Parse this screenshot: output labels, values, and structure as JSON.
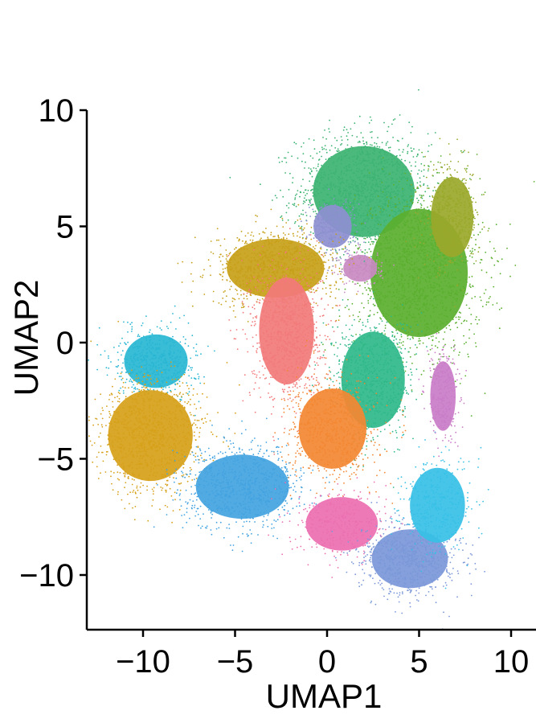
{
  "chart_data": {
    "type": "scatter",
    "title": "",
    "xlabel": "UMAP1",
    "ylabel": "UMAP2",
    "xlim": [
      -13,
      11
    ],
    "ylim": [
      -12.5,
      10
    ],
    "xticks": [
      -10,
      -5,
      0,
      5,
      10
    ],
    "yticks": [
      -10,
      -5,
      0,
      5,
      10
    ],
    "xtick_labels": [
      "−10",
      "−5",
      "0",
      "5",
      "10"
    ],
    "ytick_labels": [
      "−10",
      "−5",
      "0",
      "5",
      "10"
    ],
    "grid": false,
    "legend": "none",
    "clusters": [
      {
        "color": "#3cb371",
        "center": [
          2.0,
          6.5
        ],
        "spread": [
          2.4,
          1.7
        ],
        "density": 1400
      },
      {
        "color": "#5aaf2e",
        "center": [
          5.0,
          3.0
        ],
        "spread": [
          2.3,
          2.4
        ],
        "density": 1500
      },
      {
        "color": "#9aa82a",
        "center": [
          6.8,
          5.4
        ],
        "spread": [
          1.0,
          1.5
        ],
        "density": 400
      },
      {
        "color": "#8d8fd0",
        "center": [
          0.3,
          5.0
        ],
        "spread": [
          0.9,
          0.8
        ],
        "density": 250
      },
      {
        "color": "#c98ac2",
        "center": [
          1.8,
          3.2
        ],
        "spread": [
          0.8,
          0.5
        ],
        "density": 150
      },
      {
        "color": "#c79f18",
        "center": [
          -2.8,
          3.2
        ],
        "spread": [
          2.3,
          1.1
        ],
        "density": 900
      },
      {
        "color": "#f27a7a",
        "center": [
          -2.2,
          0.5
        ],
        "spread": [
          1.3,
          2.0
        ],
        "density": 900
      },
      {
        "color": "#2fb88a",
        "center": [
          2.5,
          -1.6
        ],
        "spread": [
          1.5,
          1.8
        ],
        "density": 700
      },
      {
        "color": "#f38732",
        "center": [
          0.3,
          -3.7
        ],
        "spread": [
          1.6,
          1.5
        ],
        "density": 700
      },
      {
        "color": "#28b6d3",
        "center": [
          -9.3,
          -0.8
        ],
        "spread": [
          1.5,
          1.0
        ],
        "density": 500
      },
      {
        "color": "#d6a018",
        "center": [
          -9.6,
          -4.0
        ],
        "spread": [
          2.0,
          1.7
        ],
        "density": 1000
      },
      {
        "color": "#43a3e0",
        "center": [
          -4.6,
          -6.2
        ],
        "spread": [
          2.2,
          1.2
        ],
        "density": 800
      },
      {
        "color": "#eb6fb1",
        "center": [
          0.8,
          -7.8
        ],
        "spread": [
          1.7,
          1.0
        ],
        "density": 350
      },
      {
        "color": "#7a97d8",
        "center": [
          4.5,
          -9.3
        ],
        "spread": [
          1.8,
          1.1
        ],
        "density": 700
      },
      {
        "color": "#36c0e6",
        "center": [
          6.0,
          -7.0
        ],
        "spread": [
          1.3,
          1.4
        ],
        "density": 350
      },
      {
        "color": "#c97cc7",
        "center": [
          6.3,
          -2.3
        ],
        "spread": [
          0.6,
          1.3
        ],
        "density": 250
      }
    ]
  }
}
